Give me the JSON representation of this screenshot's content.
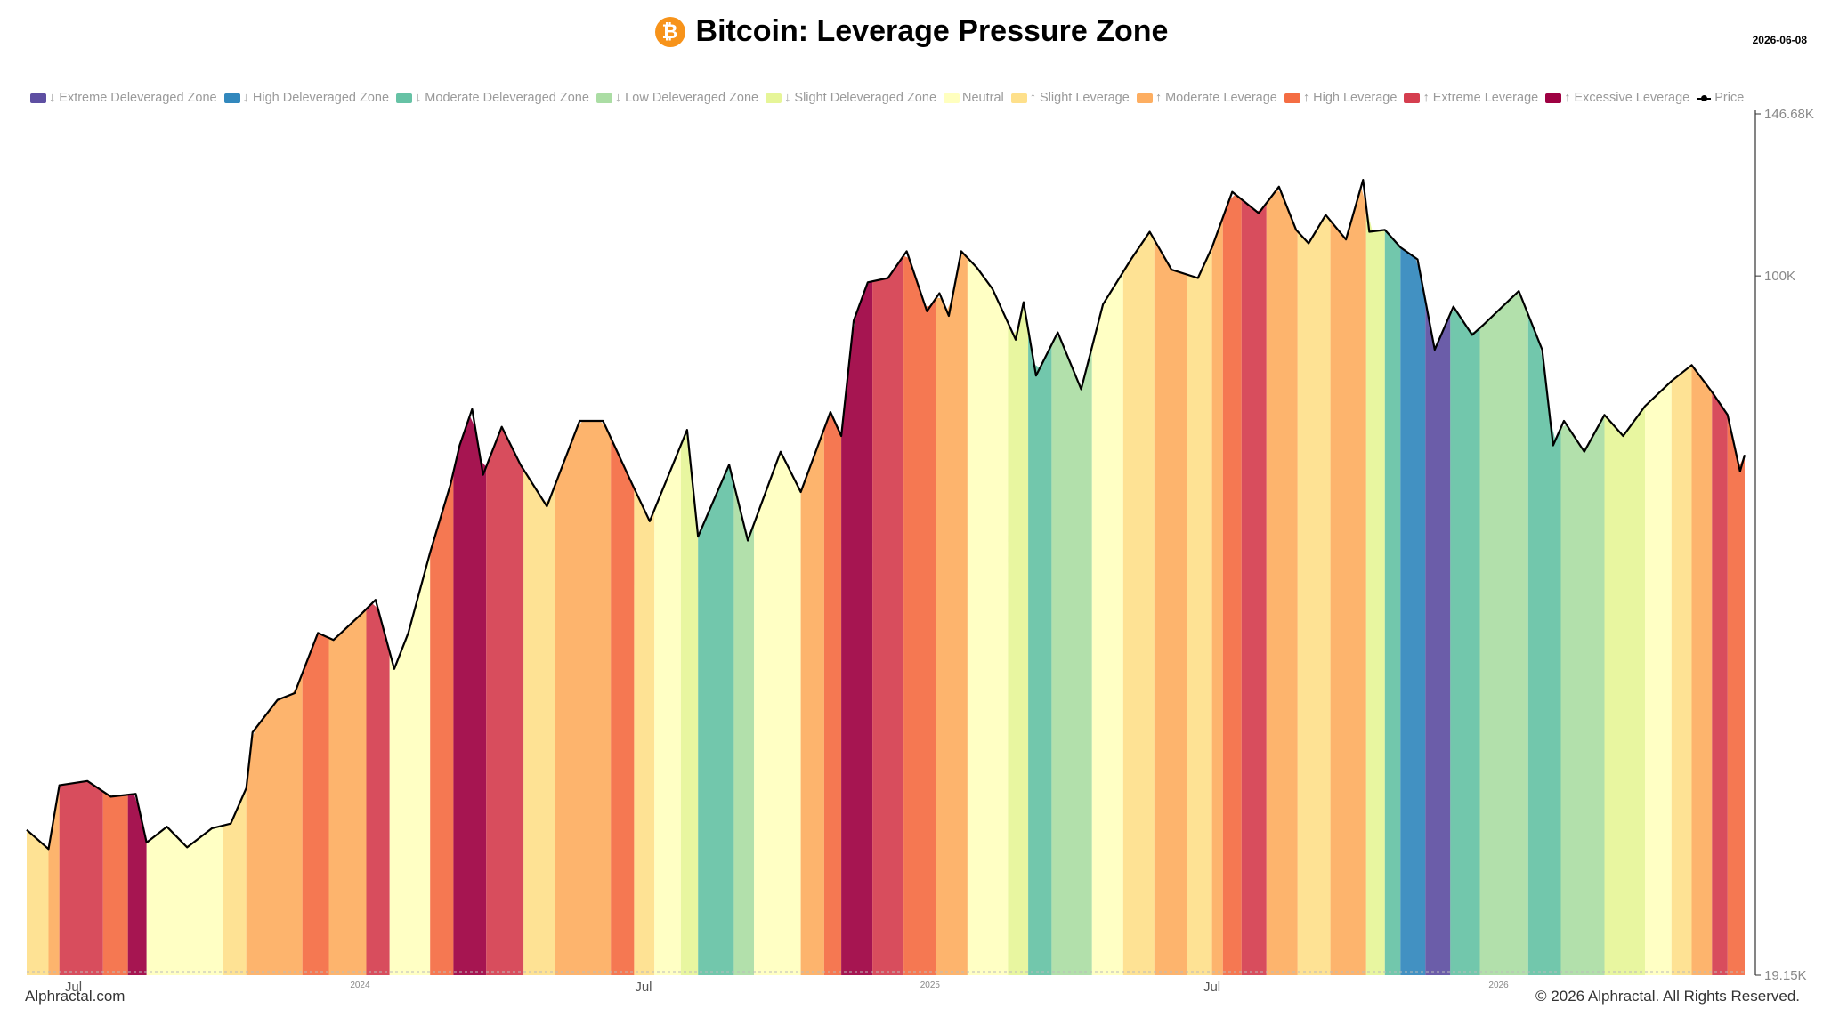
{
  "header": {
    "icon_glyph": "₿",
    "title": "Bitcoin: Leverage Pressure Zone",
    "date": "2026-06-08"
  },
  "legend": [
    {
      "label": "↓ Extreme Deleveraged Zone",
      "color": "#5e4fa2"
    },
    {
      "label": "↓ High Deleveraged Zone",
      "color": "#3288bd"
    },
    {
      "label": "↓ Moderate Deleveraged Zone",
      "color": "#66c2a5"
    },
    {
      "label": "↓ Low Deleveraged Zone",
      "color": "#abdda4"
    },
    {
      "label": "↓ Slight Deleveraged Zone",
      "color": "#e6f598"
    },
    {
      "label": "Neutral",
      "color": "#ffffbf"
    },
    {
      "label": "↑ Slight Leverage",
      "color": "#fee08b"
    },
    {
      "label": "↑ Moderate Leverage",
      "color": "#fdae61"
    },
    {
      "label": "↑ High Leverage",
      "color": "#f46d43"
    },
    {
      "label": "↑ Extreme Leverage",
      "color": "#d53e4f"
    },
    {
      "label": "↑ Excessive Leverage",
      "color": "#9e0142"
    }
  ],
  "price_legend_label": "Price",
  "footer": {
    "left": "Alphractal.com",
    "right": "© 2026 Alphractal. All Rights Reserved.",
    "watermark": "Alphractal"
  },
  "chart_data": {
    "type": "line",
    "title": "Bitcoin: Leverage Pressure Zone",
    "y_scale": "log",
    "ylim": [
      19150,
      146680
    ],
    "y_tick_labels": [
      "146.68K",
      "100K",
      "19.15K"
    ],
    "y_tick_values": [
      146680,
      100000,
      19150
    ],
    "x_tick_labels": [
      {
        "label": "Jul",
        "date": "2023-07-01",
        "style": "major"
      },
      {
        "label": "2024",
        "date": "2024-01-01",
        "style": "minor"
      },
      {
        "label": "Jul",
        "date": "2024-07-01",
        "style": "major"
      },
      {
        "label": "2025",
        "date": "2025-01-01",
        "style": "minor"
      },
      {
        "label": "Jul",
        "date": "2025-07-01",
        "style": "major"
      },
      {
        "label": "2026",
        "date": "2026-01-01",
        "style": "minor"
      }
    ],
    "x_range": [
      "2023-06-01",
      "2026-06-08"
    ],
    "series": [
      {
        "name": "Price",
        "color": "#000000",
        "points": [
          [
            "2023-06-01",
            27000
          ],
          [
            "2023-06-15",
            25800
          ],
          [
            "2023-06-22",
            30000
          ],
          [
            "2023-07-10",
            30300
          ],
          [
            "2023-07-25",
            29200
          ],
          [
            "2023-08-10",
            29400
          ],
          [
            "2023-08-17",
            26200
          ],
          [
            "2023-08-30",
            27200
          ],
          [
            "2023-09-12",
            25900
          ],
          [
            "2023-09-28",
            27100
          ],
          [
            "2023-10-10",
            27400
          ],
          [
            "2023-10-20",
            29800
          ],
          [
            "2023-10-24",
            34000
          ],
          [
            "2023-11-09",
            36700
          ],
          [
            "2023-11-20",
            37300
          ],
          [
            "2023-12-05",
            43000
          ],
          [
            "2023-12-15",
            42300
          ],
          [
            "2024-01-02",
            45000
          ],
          [
            "2024-01-11",
            46500
          ],
          [
            "2024-01-23",
            39500
          ],
          [
            "2024-02-01",
            43000
          ],
          [
            "2024-02-15",
            52000
          ],
          [
            "2024-02-28",
            61000
          ],
          [
            "2024-03-05",
            67000
          ],
          [
            "2024-03-13",
            73000
          ],
          [
            "2024-03-20",
            62500
          ],
          [
            "2024-04-01",
            70000
          ],
          [
            "2024-04-13",
            64000
          ],
          [
            "2024-04-30",
            58000
          ],
          [
            "2024-05-21",
            71000
          ],
          [
            "2024-06-05",
            71000
          ],
          [
            "2024-06-24",
            61000
          ],
          [
            "2024-07-05",
            56000
          ],
          [
            "2024-07-29",
            69500
          ],
          [
            "2024-08-05",
            54000
          ],
          [
            "2024-08-25",
            64000
          ],
          [
            "2024-09-06",
            53500
          ],
          [
            "2024-09-27",
            66000
          ],
          [
            "2024-10-10",
            60000
          ],
          [
            "2024-10-29",
            72500
          ],
          [
            "2024-11-05",
            68500
          ],
          [
            "2024-11-13",
            90000
          ],
          [
            "2024-11-22",
            98500
          ],
          [
            "2024-12-05",
            99500
          ],
          [
            "2024-12-17",
            106000
          ],
          [
            "2024-12-30",
            92000
          ],
          [
            "2025-01-07",
            96000
          ],
          [
            "2025-01-13",
            91000
          ],
          [
            "2025-01-21",
            106000
          ],
          [
            "2025-01-31",
            102000
          ],
          [
            "2025-02-10",
            97000
          ],
          [
            "2025-02-25",
            86000
          ],
          [
            "2025-03-02",
            94000
          ],
          [
            "2025-03-10",
            79000
          ],
          [
            "2025-03-24",
            87500
          ],
          [
            "2025-04-08",
            76500
          ],
          [
            "2025-04-22",
            93500
          ],
          [
            "2025-05-10",
            104000
          ],
          [
            "2025-05-22",
            111000
          ],
          [
            "2025-06-05",
            101500
          ],
          [
            "2025-06-22",
            99500
          ],
          [
            "2025-07-01",
            107000
          ],
          [
            "2025-07-14",
            122000
          ],
          [
            "2025-07-31",
            116000
          ],
          [
            "2025-08-13",
            123500
          ],
          [
            "2025-08-24",
            111500
          ],
          [
            "2025-09-01",
            108000
          ],
          [
            "2025-09-12",
            115500
          ],
          [
            "2025-09-25",
            109000
          ],
          [
            "2025-10-06",
            125500
          ],
          [
            "2025-10-10",
            111000
          ],
          [
            "2025-10-20",
            111500
          ],
          [
            "2025-10-30",
            107000
          ],
          [
            "2025-11-10",
            104000
          ],
          [
            "2025-11-21",
            84000
          ],
          [
            "2025-12-03",
            93000
          ],
          [
            "2025-12-15",
            87000
          ],
          [
            "2025-12-22",
            89000
          ],
          [
            "2026-01-05",
            93500
          ],
          [
            "2026-01-14",
            96500
          ],
          [
            "2026-01-29",
            84000
          ],
          [
            "2026-02-05",
            67000
          ],
          [
            "2026-02-12",
            71000
          ],
          [
            "2026-02-25",
            66000
          ],
          [
            "2026-03-10",
            72000
          ],
          [
            "2026-03-22",
            68500
          ],
          [
            "2026-04-05",
            73500
          ],
          [
            "2026-04-22",
            78000
          ],
          [
            "2026-05-05",
            81000
          ],
          [
            "2026-05-18",
            76000
          ],
          [
            "2026-05-28",
            72000
          ],
          [
            "2026-06-05",
            63000
          ],
          [
            "2026-06-08",
            65500
          ]
        ]
      }
    ],
    "zone_segments": [
      [
        "2023-06-01",
        "2023-06-15",
        6
      ],
      [
        "2023-06-15",
        "2023-06-22",
        7
      ],
      [
        "2023-06-22",
        "2023-07-20",
        9
      ],
      [
        "2023-07-20",
        "2023-08-05",
        8
      ],
      [
        "2023-08-05",
        "2023-08-17",
        10
      ],
      [
        "2023-08-17",
        "2023-10-05",
        5
      ],
      [
        "2023-10-05",
        "2023-10-20",
        6
      ],
      [
        "2023-10-20",
        "2023-11-25",
        7
      ],
      [
        "2023-11-25",
        "2023-12-12",
        8
      ],
      [
        "2023-12-12",
        "2024-01-05",
        7
      ],
      [
        "2024-01-05",
        "2024-01-20",
        9
      ],
      [
        "2024-01-20",
        "2024-02-15",
        5
      ],
      [
        "2024-02-15",
        "2024-03-01",
        8
      ],
      [
        "2024-03-01",
        "2024-03-22",
        10
      ],
      [
        "2024-03-22",
        "2024-04-15",
        9
      ],
      [
        "2024-04-15",
        "2024-05-05",
        6
      ],
      [
        "2024-05-05",
        "2024-06-10",
        7
      ],
      [
        "2024-06-10",
        "2024-06-25",
        8
      ],
      [
        "2024-06-25",
        "2024-07-08",
        6
      ],
      [
        "2024-07-08",
        "2024-07-25",
        5
      ],
      [
        "2024-07-25",
        "2024-08-05",
        4
      ],
      [
        "2024-08-05",
        "2024-08-28",
        2
      ],
      [
        "2024-08-28",
        "2024-09-10",
        3
      ],
      [
        "2024-09-10",
        "2024-10-10",
        5
      ],
      [
        "2024-10-10",
        "2024-10-25",
        7
      ],
      [
        "2024-10-25",
        "2024-11-05",
        8
      ],
      [
        "2024-11-05",
        "2024-11-25",
        10
      ],
      [
        "2024-11-25",
        "2024-12-15",
        9
      ],
      [
        "2024-12-15",
        "2025-01-05",
        8
      ],
      [
        "2025-01-05",
        "2025-01-25",
        7
      ],
      [
        "2025-01-25",
        "2025-02-20",
        5
      ],
      [
        "2025-02-20",
        "2025-03-05",
        4
      ],
      [
        "2025-03-05",
        "2025-03-20",
        2
      ],
      [
        "2025-03-20",
        "2025-04-15",
        3
      ],
      [
        "2025-04-15",
        "2025-05-05",
        5
      ],
      [
        "2025-05-05",
        "2025-05-25",
        6
      ],
      [
        "2025-05-25",
        "2025-06-15",
        7
      ],
      [
        "2025-06-15",
        "2025-07-01",
        6
      ],
      [
        "2025-07-01",
        "2025-07-08",
        7
      ],
      [
        "2025-07-08",
        "2025-07-20",
        8
      ],
      [
        "2025-07-20",
        "2025-08-05",
        9
      ],
      [
        "2025-08-05",
        "2025-08-25",
        7
      ],
      [
        "2025-08-25",
        "2025-09-15",
        6
      ],
      [
        "2025-09-15",
        "2025-10-08",
        7
      ],
      [
        "2025-10-08",
        "2025-10-20",
        4
      ],
      [
        "2025-10-20",
        "2025-10-30",
        2
      ],
      [
        "2025-10-30",
        "2025-11-15",
        1
      ],
      [
        "2025-11-15",
        "2025-12-01",
        0
      ],
      [
        "2025-12-01",
        "2025-12-20",
        2
      ],
      [
        "2025-12-20",
        "2026-01-20",
        3
      ],
      [
        "2026-01-20",
        "2026-02-10",
        2
      ],
      [
        "2026-02-10",
        "2026-03-10",
        3
      ],
      [
        "2026-03-10",
        "2026-04-05",
        4
      ],
      [
        "2026-04-05",
        "2026-04-22",
        5
      ],
      [
        "2026-04-22",
        "2026-05-05",
        6
      ],
      [
        "2026-05-05",
        "2026-05-18",
        7
      ],
      [
        "2026-05-18",
        "2026-05-28",
        9
      ],
      [
        "2026-05-28",
        "2026-06-08",
        8
      ]
    ]
  }
}
